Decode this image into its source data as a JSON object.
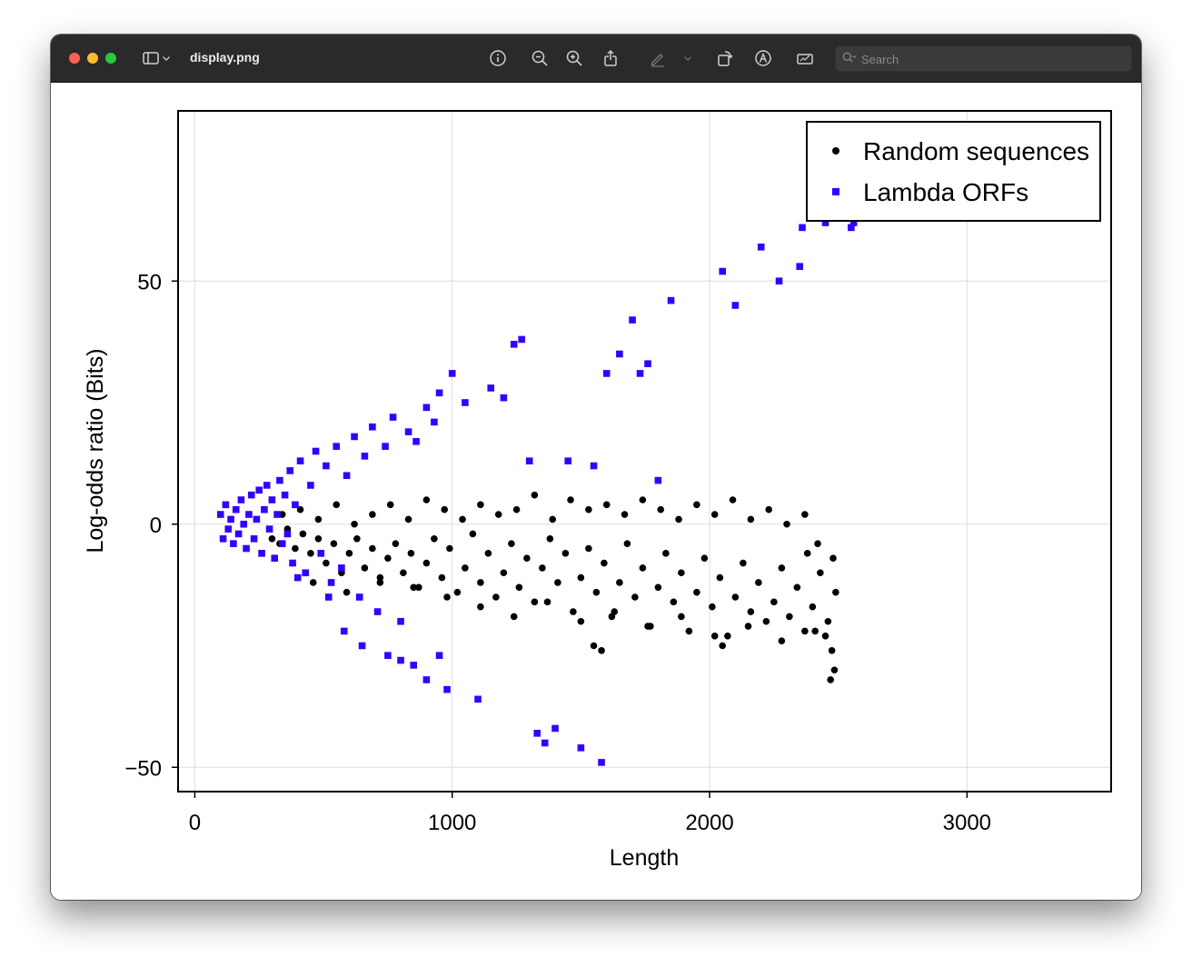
{
  "window": {
    "document_title": "display.png",
    "search_placeholder": "Search"
  },
  "toolbar_icons": [
    "sidebar-icon",
    "chevron-down-icon",
    "info-icon",
    "zoom-out-icon",
    "zoom-in-icon",
    "share-icon",
    "markup-pen-icon",
    "chevron-down-icon",
    "rotate-icon",
    "markup-icon",
    "form-fill-icon",
    "search-icon"
  ],
  "colors": {
    "random_series": "#000000",
    "lambda_series": "#3300ff",
    "grid": "#dddddd"
  },
  "chart_data": {
    "type": "scatter",
    "title": "",
    "xlabel": "Length",
    "ylabel": "Log-odds ratio (Bits)",
    "xlim": [
      -65,
      3560
    ],
    "ylim": [
      -55,
      85
    ],
    "xticks": [
      0,
      1000,
      2000,
      3000
    ],
    "xtick_labels": [
      "0",
      "1000",
      "2000",
      "3000"
    ],
    "yticks": [
      -50,
      0,
      50
    ],
    "ytick_labels": [
      "−50",
      "0",
      "50"
    ],
    "grid": true,
    "legend_position": "top-right",
    "series": [
      {
        "name": "Random sequences",
        "marker": "circle",
        "color": "#000000",
        "points": [
          [
            300,
            -3
          ],
          [
            330,
            -4
          ],
          [
            360,
            -1
          ],
          [
            390,
            -5
          ],
          [
            420,
            -2
          ],
          [
            450,
            -6
          ],
          [
            480,
            -3
          ],
          [
            510,
            -8
          ],
          [
            540,
            -4
          ],
          [
            570,
            -10
          ],
          [
            600,
            -6
          ],
          [
            630,
            -3
          ],
          [
            660,
            -9
          ],
          [
            690,
            -5
          ],
          [
            720,
            -12
          ],
          [
            750,
            -7
          ],
          [
            780,
            -4
          ],
          [
            810,
            -10
          ],
          [
            840,
            -6
          ],
          [
            870,
            -13
          ],
          [
            900,
            -8
          ],
          [
            930,
            -3
          ],
          [
            960,
            -11
          ],
          [
            990,
            -5
          ],
          [
            1020,
            -14
          ],
          [
            1050,
            -9
          ],
          [
            1080,
            -2
          ],
          [
            1110,
            -12
          ],
          [
            1140,
            -6
          ],
          [
            1170,
            -15
          ],
          [
            1200,
            -10
          ],
          [
            1230,
            -4
          ],
          [
            1260,
            -13
          ],
          [
            1290,
            -7
          ],
          [
            1320,
            -16
          ],
          [
            1350,
            -9
          ],
          [
            1380,
            -3
          ],
          [
            1410,
            -12
          ],
          [
            1440,
            -6
          ],
          [
            1470,
            -18
          ],
          [
            1500,
            -11
          ],
          [
            1530,
            -5
          ],
          [
            1560,
            -14
          ],
          [
            1590,
            -8
          ],
          [
            1620,
            -19
          ],
          [
            1650,
            -12
          ],
          [
            1680,
            -4
          ],
          [
            1710,
            -15
          ],
          [
            1740,
            -9
          ],
          [
            1770,
            -21
          ],
          [
            1800,
            -13
          ],
          [
            1830,
            -6
          ],
          [
            1860,
            -16
          ],
          [
            1890,
            -10
          ],
          [
            1920,
            -22
          ],
          [
            1950,
            -14
          ],
          [
            1980,
            -7
          ],
          [
            2010,
            -17
          ],
          [
            2040,
            -11
          ],
          [
            2070,
            -23
          ],
          [
            2100,
            -15
          ],
          [
            2130,
            -8
          ],
          [
            2160,
            -18
          ],
          [
            2190,
            -12
          ],
          [
            2220,
            -20
          ],
          [
            2250,
            -16
          ],
          [
            2280,
            -9
          ],
          [
            2310,
            -19
          ],
          [
            2340,
            -13
          ],
          [
            2370,
            -22
          ],
          [
            2400,
            -17
          ],
          [
            2430,
            -10
          ],
          [
            2460,
            -20
          ],
          [
            2475,
            -26
          ],
          [
            2485,
            -30
          ],
          [
            2490,
            -14
          ],
          [
            2480,
            -7
          ],
          [
            2450,
            -23
          ],
          [
            2420,
            -4
          ],
          [
            2380,
            -6
          ],
          [
            340,
            2
          ],
          [
            410,
            3
          ],
          [
            480,
            1
          ],
          [
            550,
            4
          ],
          [
            620,
            0
          ],
          [
            690,
            2
          ],
          [
            760,
            4
          ],
          [
            830,
            1
          ],
          [
            900,
            5
          ],
          [
            970,
            3
          ],
          [
            1040,
            1
          ],
          [
            1110,
            4
          ],
          [
            1180,
            2
          ],
          [
            1250,
            3
          ],
          [
            1320,
            6
          ],
          [
            1390,
            1
          ],
          [
            1460,
            5
          ],
          [
            1530,
            3
          ],
          [
            1600,
            4
          ],
          [
            1670,
            2
          ],
          [
            1740,
            5
          ],
          [
            1810,
            3
          ],
          [
            1880,
            1
          ],
          [
            1950,
            4
          ],
          [
            2020,
            2
          ],
          [
            2090,
            5
          ],
          [
            2160,
            1
          ],
          [
            2230,
            3
          ],
          [
            2300,
            0
          ],
          [
            2370,
            2
          ],
          [
            460,
            -12
          ],
          [
            590,
            -14
          ],
          [
            720,
            -11
          ],
          [
            850,
            -13
          ],
          [
            980,
            -15
          ],
          [
            1110,
            -17
          ],
          [
            1240,
            -19
          ],
          [
            1370,
            -16
          ],
          [
            1500,
            -20
          ],
          [
            1630,
            -18
          ],
          [
            1760,
            -21
          ],
          [
            1890,
            -19
          ],
          [
            2020,
            -23
          ],
          [
            2150,
            -21
          ],
          [
            2280,
            -24
          ],
          [
            2410,
            -22
          ],
          [
            1550,
            -25
          ],
          [
            1580,
            -26
          ],
          [
            2050,
            -25
          ],
          [
            2470,
            -32
          ]
        ]
      },
      {
        "name": "Lambda ORFs",
        "marker": "square",
        "color": "#3300ff",
        "points": [
          [
            100,
            2
          ],
          [
            110,
            -3
          ],
          [
            120,
            4
          ],
          [
            130,
            -1
          ],
          [
            140,
            1
          ],
          [
            150,
            -4
          ],
          [
            160,
            3
          ],
          [
            170,
            -2
          ],
          [
            180,
            5
          ],
          [
            190,
            0
          ],
          [
            200,
            -5
          ],
          [
            210,
            2
          ],
          [
            220,
            6
          ],
          [
            230,
            -3
          ],
          [
            240,
            1
          ],
          [
            250,
            7
          ],
          [
            260,
            -6
          ],
          [
            270,
            3
          ],
          [
            280,
            8
          ],
          [
            290,
            -1
          ],
          [
            300,
            5
          ],
          [
            310,
            -7
          ],
          [
            320,
            2
          ],
          [
            330,
            9
          ],
          [
            340,
            -4
          ],
          [
            350,
            6
          ],
          [
            360,
            -2
          ],
          [
            370,
            11
          ],
          [
            380,
            -8
          ],
          [
            390,
            4
          ],
          [
            410,
            13
          ],
          [
            430,
            -10
          ],
          [
            450,
            8
          ],
          [
            470,
            15
          ],
          [
            490,
            -6
          ],
          [
            510,
            12
          ],
          [
            530,
            -12
          ],
          [
            550,
            16
          ],
          [
            570,
            -9
          ],
          [
            590,
            10
          ],
          [
            620,
            18
          ],
          [
            640,
            -15
          ],
          [
            660,
            14
          ],
          [
            690,
            20
          ],
          [
            710,
            -18
          ],
          [
            740,
            16
          ],
          [
            770,
            22
          ],
          [
            800,
            -20
          ],
          [
            830,
            19
          ],
          [
            860,
            17
          ],
          [
            900,
            24
          ],
          [
            930,
            21
          ],
          [
            950,
            27
          ],
          [
            980,
            -34
          ],
          [
            1000,
            31
          ],
          [
            1050,
            25
          ],
          [
            1100,
            -36
          ],
          [
            1150,
            28
          ],
          [
            1200,
            26
          ],
          [
            1240,
            37
          ],
          [
            1270,
            38
          ],
          [
            1300,
            13
          ],
          [
            1330,
            -43
          ],
          [
            1360,
            -45
          ],
          [
            1400,
            -42
          ],
          [
            1450,
            13
          ],
          [
            1500,
            -46
          ],
          [
            1550,
            12
          ],
          [
            1580,
            -49
          ],
          [
            1600,
            31
          ],
          [
            1650,
            35
          ],
          [
            1700,
            42
          ],
          [
            1730,
            31
          ],
          [
            1760,
            33
          ],
          [
            1800,
            9
          ],
          [
            1850,
            46
          ],
          [
            2050,
            52
          ],
          [
            2100,
            45
          ],
          [
            2200,
            57
          ],
          [
            2270,
            50
          ],
          [
            2350,
            53
          ],
          [
            2360,
            61
          ],
          [
            2450,
            62
          ],
          [
            2550,
            61
          ],
          [
            2560,
            62
          ],
          [
            400,
            -11
          ],
          [
            520,
            -15
          ],
          [
            580,
            -22
          ],
          [
            650,
            -25
          ],
          [
            750,
            -27
          ],
          [
            800,
            -28
          ],
          [
            850,
            -29
          ],
          [
            900,
            -32
          ],
          [
            950,
            -27
          ]
        ]
      }
    ]
  }
}
